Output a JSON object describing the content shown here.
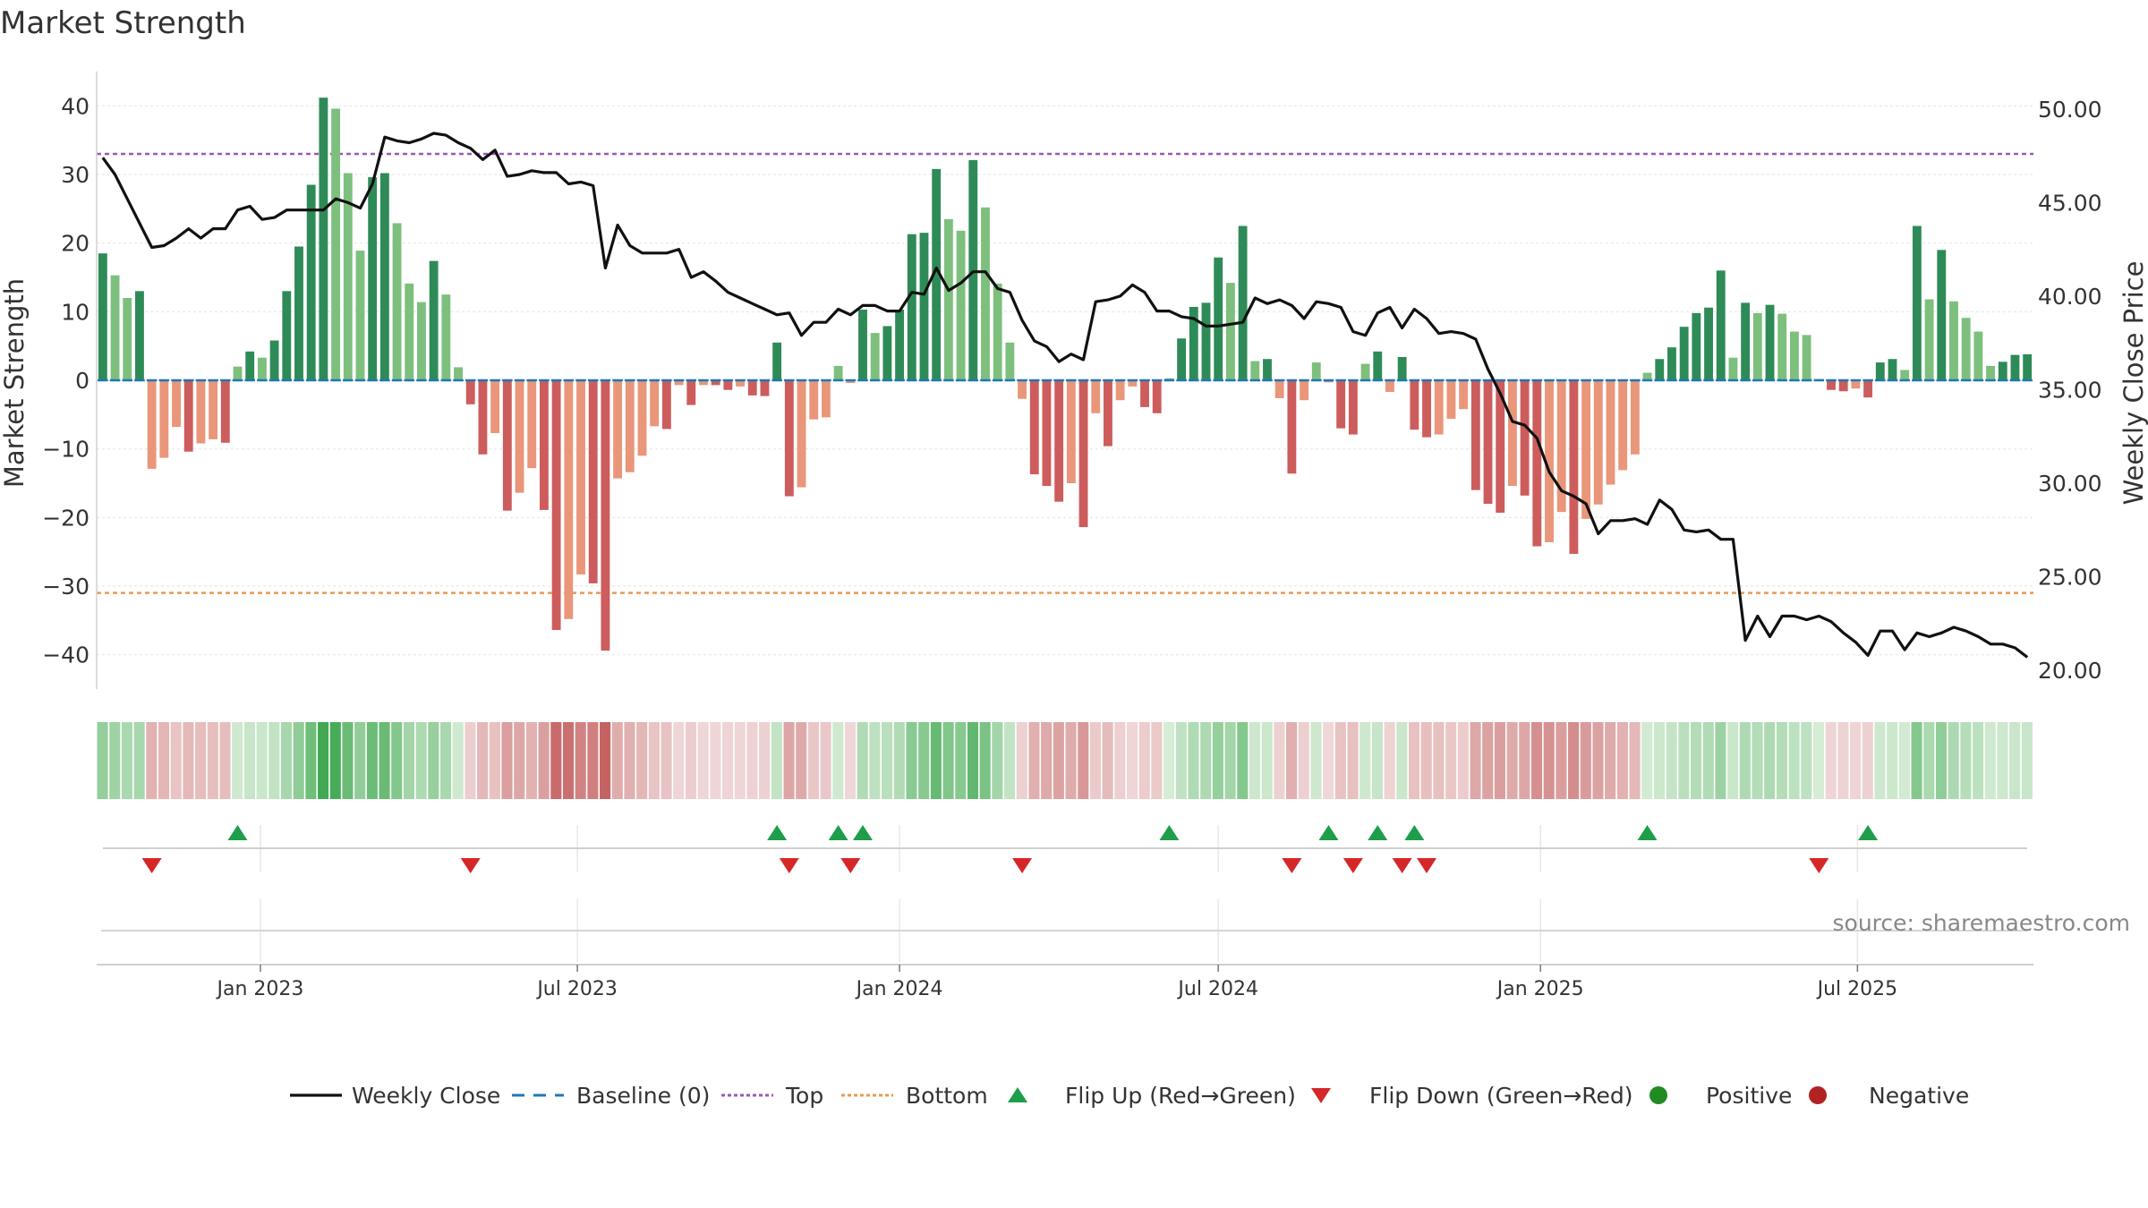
{
  "chart_data": {
    "type": "bar",
    "title": "Market Strength",
    "ylabel": "Market Strength",
    "y2label": "Weekly Close Price",
    "ylim": [
      -45,
      45
    ],
    "y2lim": [
      19,
      52
    ],
    "yticks": [
      "40",
      "30",
      "20",
      "10",
      "0",
      "−10",
      "−20",
      "−30",
      "−40"
    ],
    "y2ticks": [
      "50.00",
      "45.00",
      "40.00",
      "35.00",
      "30.00",
      "25.00",
      "20.00"
    ],
    "xticks": [
      "Jan 2023",
      "Jul 2023",
      "Jan 2024",
      "Jul 2024",
      "Jan 2025",
      "Jul 2025"
    ],
    "start_date": "2022-10-03",
    "week_step": 1,
    "top_level": 33,
    "bottom_level": -31,
    "grid": true,
    "source": "source: sharemaestro.com",
    "legend_position": "bottom-center",
    "legend": [
      {
        "key": "weekly-close",
        "label": "Weekly Close"
      },
      {
        "key": "baseline",
        "label": "Baseline (0)"
      },
      {
        "key": "top",
        "label": "Top"
      },
      {
        "key": "bottom",
        "label": "Bottom"
      },
      {
        "key": "flip-up",
        "label": "Flip Up (Red→Green)"
      },
      {
        "key": "flip-down",
        "label": "Flip Down (Green→Red)"
      },
      {
        "key": "positive",
        "label": "Positive"
      },
      {
        "key": "negative",
        "label": "Negative"
      }
    ],
    "colors": {
      "pos_strong": "#2e8b57",
      "pos_light": "#7dbf7d",
      "neg_strong": "#cd5c5c",
      "neg_light": "#e9967a",
      "close": "#111111",
      "baseline": "#1f77b4",
      "top": "#9b59b6",
      "bottom": "#e89a52",
      "flip_up": "#1e9e4a",
      "flip_down": "#d62728",
      "positive": "#228b22",
      "negative": "#b22222"
    },
    "strength": [
      18.5,
      15.3,
      12,
      13,
      -12.9,
      -11.3,
      -6.8,
      -10.4,
      -9.2,
      -8.6,
      -9.1,
      2,
      4.2,
      3.3,
      5.8,
      13,
      19.5,
      28.5,
      41.2,
      39.6,
      30.2,
      18.9,
      29.6,
      30.2,
      22.9,
      14.1,
      11.4,
      17.4,
      12.5,
      1.9,
      -3.5,
      -10.8,
      -7.7,
      -19,
      -16.4,
      -12.8,
      -18.9,
      -36.4,
      -34.8,
      -28.3,
      -29.6,
      -39.4,
      -14.3,
      -13.4,
      -11,
      -6.7,
      -7.1,
      -0.7,
      -3.6,
      -0.7,
      -0.7,
      -1.4,
      -0.9,
      -2.2,
      -2.3,
      5.5,
      -16.9,
      -15.6,
      -5.7,
      -5.4,
      2.1,
      -0.4,
      10.3,
      6.9,
      7.9,
      10.3,
      21.3,
      21.5,
      30.8,
      23.5,
      21.8,
      32.1,
      25.2,
      14.1,
      5.5,
      -2.7,
      -13.7,
      -15.4,
      -17.7,
      -15,
      -21.4,
      -4.8,
      -9.6,
      -2.9,
      -0.9,
      -3.9,
      -4.8,
      0.3,
      6.1,
      10.7,
      11.3,
      17.9,
      14.2,
      22.5,
      2.8,
      3.1,
      -2.6,
      -13.6,
      -2.9,
      2.6,
      -0.3,
      -7,
      -7.9,
      2.4,
      4.2,
      -1.7,
      3.4,
      -7.2,
      -8.3,
      -7.9,
      -5.6,
      -4.2,
      -16,
      -18,
      -19.3,
      -15.4,
      -16.8,
      -24.2,
      -23.6,
      -19.2,
      -25.3,
      -20.2,
      -18.1,
      -15.2,
      -13.1,
      -10.8,
      1.1,
      3.1,
      4.8,
      7.8,
      9.8,
      10.6,
      16,
      3.3,
      11.3,
      9.8,
      11,
      9.7,
      7.1,
      6.6,
      0.2,
      -1.4,
      -1.6,
      -1.2,
      -2.5,
      2.6,
      3.1,
      1.5,
      22.5,
      11.8,
      19,
      11.5,
      9.1,
      7.1,
      2.1,
      2.7,
      3.7,
      3.8
    ],
    "close": [
      47.4,
      46.5,
      45.2,
      43.9,
      42.6,
      42.7,
      43.1,
      43.6,
      43.1,
      43.6,
      43.6,
      44.6,
      44.8,
      44.1,
      44.2,
      44.6,
      44.6,
      44.6,
      44.6,
      45.2,
      45.0,
      44.7,
      46.0,
      48.5,
      48.3,
      48.2,
      48.4,
      48.7,
      48.6,
      48.2,
      47.9,
      47.3,
      47.8,
      46.4,
      46.5,
      46.7,
      46.6,
      46.6,
      46.0,
      46.1,
      45.9,
      41.5,
      43.8,
      42.7,
      42.3,
      42.3,
      42.3,
      42.5,
      41.0,
      41.3,
      40.8,
      40.2,
      39.9,
      39.6,
      39.3,
      39.0,
      39.1,
      37.9,
      38.6,
      38.6,
      39.3,
      39.0,
      39.5,
      39.5,
      39.2,
      39.2,
      40.2,
      40.1,
      41.5,
      40.3,
      40.7,
      41.3,
      41.3,
      40.4,
      40.2,
      38.7,
      37.6,
      37.3,
      36.5,
      36.9,
      36.6,
      39.7,
      39.8,
      40.0,
      40.6,
      40.2,
      39.2,
      39.2,
      38.9,
      38.8,
      38.4,
      38.4,
      38.5,
      38.6,
      39.9,
      39.6,
      39.8,
      39.5,
      38.8,
      39.7,
      39.6,
      39.4,
      38.1,
      37.9,
      39.1,
      39.4,
      38.3,
      39.3,
      38.8,
      38.0,
      38.1,
      38.0,
      37.7,
      36.1,
      34.8,
      33.3,
      33.1,
      32.4,
      30.6,
      29.6,
      29.3,
      28.9,
      27.3,
      28.0,
      28.0,
      28.1,
      27.8,
      29.1,
      28.6,
      27.5,
      27.4,
      27.5,
      27.0,
      27.0,
      21.6,
      22.9,
      21.8,
      22.9,
      22.9,
      22.7,
      22.9,
      22.6,
      22.0,
      21.5,
      20.8,
      22.1,
      22.1,
      21.1,
      22.0,
      21.8,
      22.0,
      22.3,
      22.1,
      21.8,
      21.4,
      21.4,
      21.2,
      20.7
    ],
    "flip_up": [
      11,
      55,
      60,
      62,
      87,
      100,
      104,
      107,
      126,
      144
    ],
    "flip_down": [
      4,
      30,
      56,
      61,
      75,
      97,
      102,
      106,
      108,
      140
    ]
  }
}
